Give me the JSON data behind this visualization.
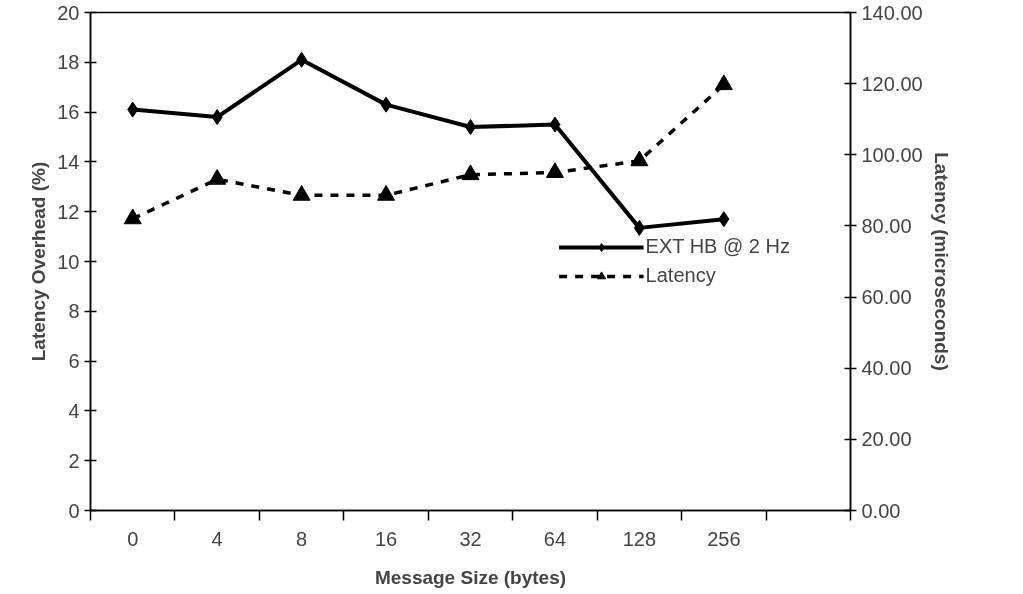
{
  "chart_data": {
    "type": "line",
    "categories": [
      "0",
      "4",
      "8",
      "16",
      "32",
      "64",
      "128",
      "256",
      null
    ],
    "xlabel": "Message Size (bytes)",
    "ylabel": "Latency Overhead (%)",
    "y2label": "Latency (microseconds)",
    "ylim": [
      0,
      20
    ],
    "yticks": [
      0,
      2,
      4,
      6,
      8,
      10,
      12,
      14,
      16,
      18,
      20
    ],
    "y2lim": [
      0,
      140
    ],
    "y2ticks": [
      {
        "value": 0,
        "label": "0.00"
      },
      {
        "value": 20,
        "label": "20.00"
      },
      {
        "value": 40,
        "label": "40.00"
      },
      {
        "value": 60,
        "label": "60.00"
      },
      {
        "value": 80,
        "label": "80.00"
      },
      {
        "value": 100,
        "label": "100.00"
      },
      {
        "value": 120,
        "label": "120.00"
      },
      {
        "value": 140,
        "label": "140.00"
      }
    ],
    "legend": "right",
    "grid": false,
    "series": [
      {
        "name": "EXT HB @ 2 Hz",
        "color": "#000000",
        "marker": "diamond",
        "line_style": "solid",
        "values": [
          16.1,
          15.8,
          18.1,
          16.3,
          15.4,
          15.5,
          11.35,
          11.7,
          null
        ]
      },
      {
        "name": "Latency",
        "color": "#000000",
        "marker": "triangle",
        "line_style": "dashed",
        "axis": "y2",
        "values": [
          82.0,
          93.1,
          88.6,
          88.6,
          94.4,
          95.0,
          98.3,
          119.7,
          null
        ]
      }
    ]
  }
}
